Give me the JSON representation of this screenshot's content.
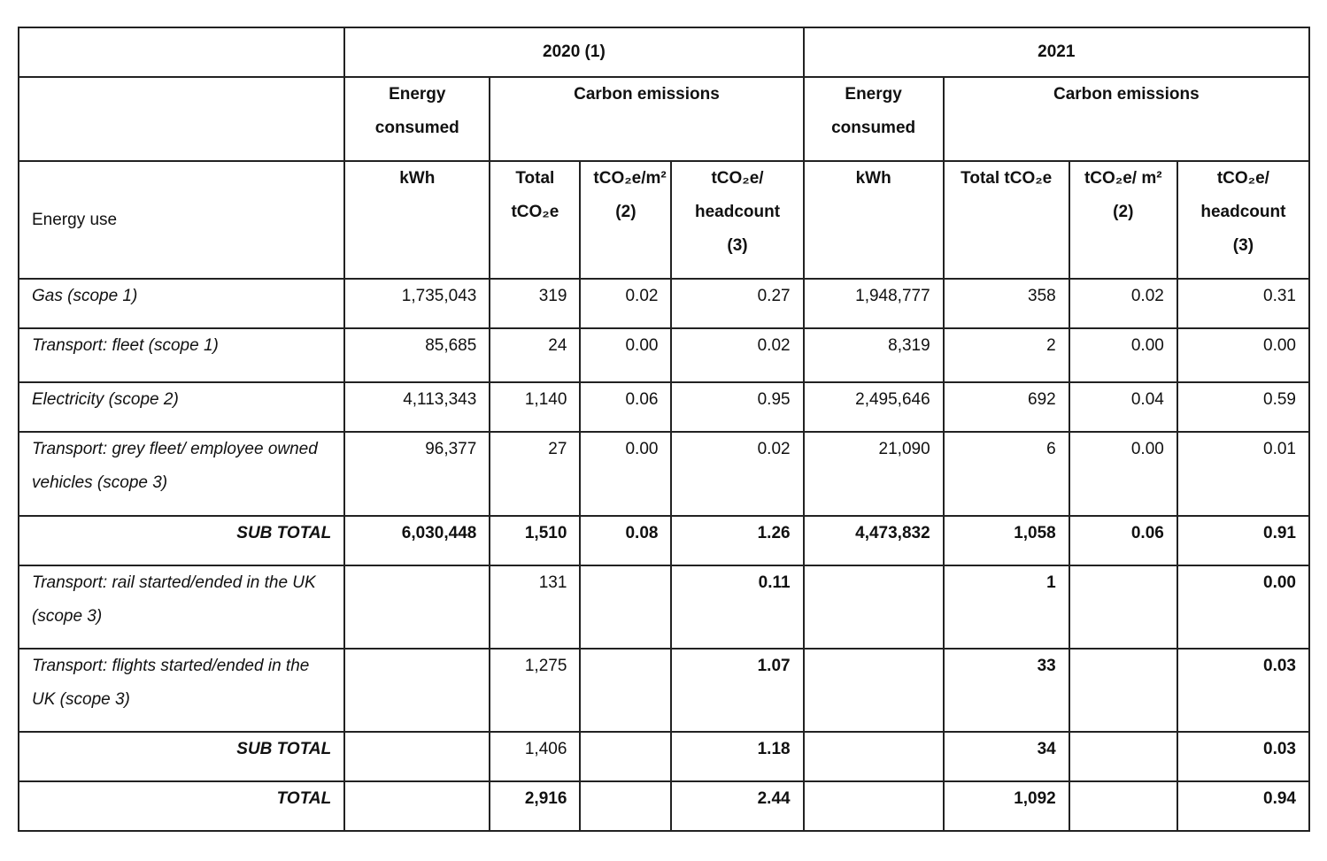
{
  "header": {
    "year_2020": "2020 (1)",
    "year_2021": "2021",
    "energy_consumed": "Energy consumed",
    "carbon_emissions": "Carbon emissions",
    "energy_use": "Energy use",
    "kwh": "kWh",
    "total_2020": "Total tCO₂e",
    "per_m2_2020": "tCO₂e/m² (2)",
    "per_headcount_2020": "tCO₂e/ headcount (3)",
    "total_2021": "Total tCO₂e",
    "per_m2_2021": "tCO₂e/ m² (2)",
    "per_headcount_2021": "tCO₂e/ headcount (3)"
  },
  "rows": [
    {
      "label": "Gas (scope 1)",
      "kwh2020": "1,735,043",
      "tot2020": "319",
      "m2_2020": "0.02",
      "hc2020": "0.27",
      "kwh2021": "1,948,777",
      "tot2021": "358",
      "m2_2021": "0.02",
      "hc2021": "0.31"
    },
    {
      "label": "Transport: fleet (scope 1)",
      "kwh2020": "85,685",
      "tot2020": "24",
      "m2_2020": "0.00",
      "hc2020": "0.02",
      "kwh2021": "8,319",
      "tot2021": "2",
      "m2_2021": "0.00",
      "hc2021": "0.00"
    },
    {
      "label": "Electricity (scope 2)",
      "kwh2020": "4,113,343",
      "tot2020": "1,140",
      "m2_2020": "0.06",
      "hc2020": "0.95",
      "kwh2021": "2,495,646",
      "tot2021": "692",
      "m2_2021": "0.04",
      "hc2021": "0.59"
    },
    {
      "label": "Transport: grey fleet/ employee owned vehicles  (scope 3)",
      "kwh2020": "96,377",
      "tot2020": "27",
      "m2_2020": "0.00",
      "hc2020": "0.02",
      "kwh2021": "21,090",
      "tot2021": "6",
      "m2_2021": "0.00",
      "hc2021": "0.01"
    },
    {
      "label": "SUB TOTAL",
      "kwh2020": "6,030,448",
      "tot2020": "1,510",
      "m2_2020": "0.08",
      "hc2020": "1.26",
      "kwh2021": "4,473,832",
      "tot2021": "1,058",
      "m2_2021": "0.06",
      "hc2021": "0.91"
    },
    {
      "label": "Transport: rail started/ended in the UK (scope 3)",
      "tot2020": "131",
      "hc2020": "0.11",
      "tot2021": "1",
      "hc2021": "0.00"
    },
    {
      "label": "Transport: flights started/ended in the UK (scope 3)",
      "tot2020": "1,275",
      "hc2020": "1.07",
      "tot2021": "33",
      "hc2021": "0.03"
    },
    {
      "label": "SUB TOTAL",
      "tot2020": "1,406",
      "hc2020": "1.18",
      "tot2021": "34",
      "hc2021": "0.03"
    },
    {
      "label": "TOTAL",
      "tot2020": "2,916",
      "hc2020": "2.44",
      "tot2021": "1,092",
      "hc2021": "0.94"
    }
  ]
}
